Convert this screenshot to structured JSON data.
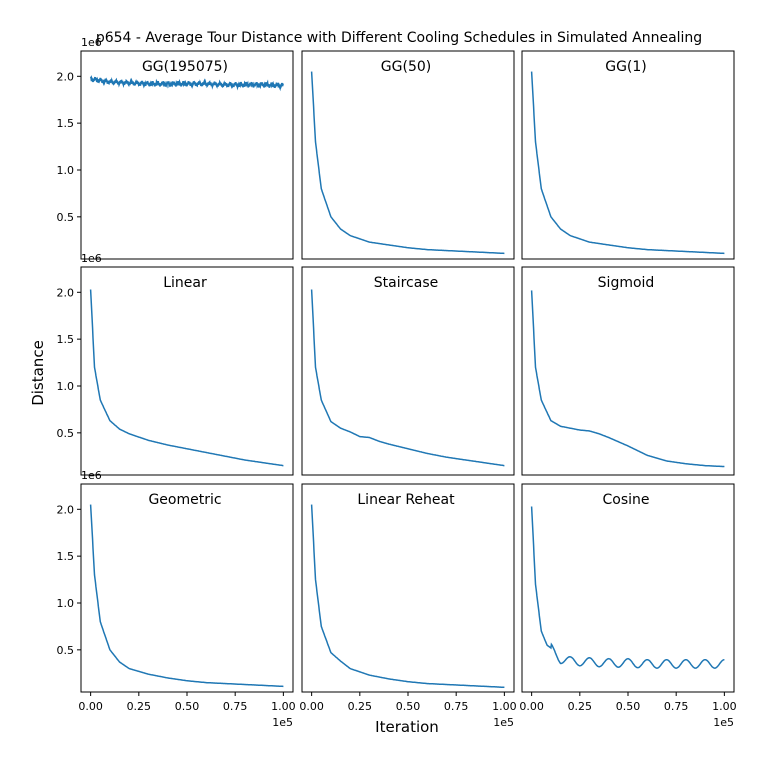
{
  "figure": {
    "title": "p654 - Average Tour Distance with Different Cooling Schedules in Simulated Annealing",
    "xlabel": "Iteration",
    "ylabel": "Distance",
    "y_offset_label": "1e6",
    "x_offset_label": "1e5",
    "line_color": "#1f77b4"
  },
  "chart_data": [
    {
      "type": "line",
      "title": "GG(195075)",
      "pattern": "flat",
      "ylim": [
        0.05,
        2.27
      ],
      "xlim": [
        -0.05,
        1.05
      ],
      "yticks": [
        "0.5",
        "1.0",
        "1.5",
        "2.0"
      ],
      "xticks": [],
      "x": [
        0,
        0.1,
        0.2,
        0.3,
        0.4,
        0.5,
        0.6,
        0.7,
        0.8,
        0.9,
        1.0
      ],
      "y": [
        1.97,
        1.94,
        1.93,
        1.92,
        1.92,
        1.92,
        1.92,
        1.91,
        1.91,
        1.91,
        1.9
      ]
    },
    {
      "type": "line",
      "title": "GG(50)",
      "pattern": "decay",
      "ylim": [
        0.05,
        2.27
      ],
      "xlim": [
        -0.05,
        1.05
      ],
      "yticks": [],
      "xticks": [],
      "x": [
        0,
        0.02,
        0.05,
        0.1,
        0.15,
        0.2,
        0.3,
        0.4,
        0.5,
        0.6,
        0.7,
        0.8,
        0.9,
        1.0
      ],
      "y": [
        2.05,
        1.3,
        0.8,
        0.5,
        0.37,
        0.3,
        0.23,
        0.2,
        0.17,
        0.15,
        0.14,
        0.13,
        0.12,
        0.11
      ]
    },
    {
      "type": "line",
      "title": "GG(1)",
      "pattern": "decay",
      "ylim": [
        0.05,
        2.27
      ],
      "xlim": [
        -0.05,
        1.05
      ],
      "yticks": [],
      "xticks": [],
      "x": [
        0,
        0.02,
        0.05,
        0.1,
        0.15,
        0.2,
        0.3,
        0.4,
        0.5,
        0.6,
        0.7,
        0.8,
        0.9,
        1.0
      ],
      "y": [
        2.05,
        1.3,
        0.8,
        0.5,
        0.37,
        0.3,
        0.23,
        0.2,
        0.17,
        0.15,
        0.14,
        0.13,
        0.12,
        0.11
      ]
    },
    {
      "type": "line",
      "title": "Linear",
      "pattern": "linear",
      "ylim": [
        0.05,
        2.27
      ],
      "xlim": [
        -0.05,
        1.05
      ],
      "yticks": [
        "0.5",
        "1.0",
        "1.5",
        "2.0"
      ],
      "xticks": [],
      "x": [
        0,
        0.02,
        0.05,
        0.1,
        0.15,
        0.2,
        0.3,
        0.4,
        0.5,
        0.6,
        0.7,
        0.8,
        0.9,
        1.0
      ],
      "y": [
        2.03,
        1.2,
        0.85,
        0.63,
        0.54,
        0.49,
        0.42,
        0.37,
        0.33,
        0.29,
        0.25,
        0.21,
        0.18,
        0.15
      ]
    },
    {
      "type": "line",
      "title": "Staircase",
      "pattern": "staircase",
      "ylim": [
        0.05,
        2.27
      ],
      "xlim": [
        -0.05,
        1.05
      ],
      "yticks": [],
      "xticks": [],
      "x": [
        0,
        0.02,
        0.05,
        0.1,
        0.15,
        0.2,
        0.25,
        0.3,
        0.35,
        0.4,
        0.5,
        0.6,
        0.7,
        0.8,
        0.9,
        1.0
      ],
      "y": [
        2.03,
        1.2,
        0.85,
        0.62,
        0.55,
        0.51,
        0.46,
        0.45,
        0.41,
        0.38,
        0.33,
        0.28,
        0.24,
        0.21,
        0.18,
        0.15
      ]
    },
    {
      "type": "line",
      "title": "Sigmoid",
      "pattern": "sigmoid",
      "ylim": [
        0.05,
        2.27
      ],
      "xlim": [
        -0.05,
        1.05
      ],
      "yticks": [],
      "xticks": [],
      "x": [
        0,
        0.02,
        0.05,
        0.1,
        0.15,
        0.2,
        0.25,
        0.3,
        0.35,
        0.4,
        0.5,
        0.6,
        0.7,
        0.8,
        0.9,
        1.0
      ],
      "y": [
        2.02,
        1.2,
        0.85,
        0.63,
        0.57,
        0.55,
        0.53,
        0.52,
        0.49,
        0.45,
        0.36,
        0.26,
        0.2,
        0.17,
        0.15,
        0.14
      ]
    },
    {
      "type": "line",
      "title": "Geometric",
      "pattern": "decay",
      "ylim": [
        0.05,
        2.27
      ],
      "xlim": [
        -0.05,
        1.05
      ],
      "yticks": [
        "0.5",
        "1.0",
        "1.5",
        "2.0"
      ],
      "xticks": [
        "0.00",
        "0.25",
        "0.50",
        "0.75",
        "1.00"
      ],
      "x": [
        0,
        0.02,
        0.05,
        0.1,
        0.15,
        0.2,
        0.3,
        0.4,
        0.5,
        0.6,
        0.7,
        0.8,
        0.9,
        1.0
      ],
      "y": [
        2.05,
        1.3,
        0.8,
        0.5,
        0.37,
        0.3,
        0.24,
        0.2,
        0.17,
        0.15,
        0.14,
        0.13,
        0.12,
        0.11
      ]
    },
    {
      "type": "line",
      "title": "Linear Reheat",
      "pattern": "decay",
      "ylim": [
        0.05,
        2.27
      ],
      "xlim": [
        -0.05,
        1.05
      ],
      "yticks": [],
      "xticks": [
        "0.00",
        "0.25",
        "0.50",
        "0.75",
        "1.00"
      ],
      "x": [
        0,
        0.02,
        0.05,
        0.1,
        0.15,
        0.2,
        0.3,
        0.4,
        0.5,
        0.6,
        0.7,
        0.8,
        0.9,
        1.0
      ],
      "y": [
        2.05,
        1.25,
        0.75,
        0.47,
        0.38,
        0.3,
        0.23,
        0.19,
        0.16,
        0.14,
        0.13,
        0.12,
        0.11,
        0.1
      ]
    },
    {
      "type": "line",
      "title": "Cosine",
      "pattern": "cosine",
      "ylim": [
        0.05,
        2.27
      ],
      "xlim": [
        -0.05,
        1.05
      ],
      "yticks": [],
      "xticks": [
        "0.00",
        "0.25",
        "0.50",
        "0.75",
        "1.00"
      ],
      "x": [
        0,
        0.02,
        0.05,
        0.08,
        0.1,
        0.15,
        0.2,
        0.3,
        0.4,
        0.5,
        0.6,
        0.7,
        0.8,
        0.9,
        1.0
      ],
      "y": [
        2.03,
        1.2,
        0.7,
        0.55,
        0.52,
        0.4,
        0.38,
        0.37,
        0.36,
        0.36,
        0.35,
        0.35,
        0.35,
        0.35,
        0.35
      ]
    }
  ]
}
